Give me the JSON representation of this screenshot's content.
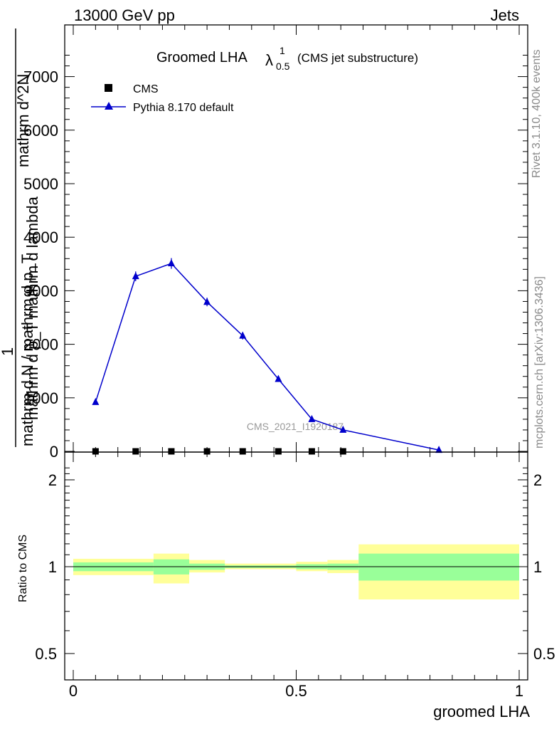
{
  "header": {
    "energy": "13000 GeV pp",
    "category": "Jets"
  },
  "plot_title": {
    "main": "Groomed LHA",
    "lambda": "λ",
    "sup": "1",
    "sub": "0.5",
    "suffix": "(CMS jet substructure)"
  },
  "side_labels": {
    "rivet": "Rivet 3.1.10,  400k events",
    "mcplots": "mcplots.cern.ch [arXiv:1306.3436]"
  },
  "watermark": "CMS_2021_I1920187",
  "ylabel_upper": {
    "one": "1",
    "denominator": "mathrm d N / mathrm d p_T",
    "numerator": "mathrm d^2N",
    "dlambda": "mathrm d p_T mathrm d lambda"
  },
  "colors": {
    "mc": "#0000cc",
    "band_inner": "#99ff99",
    "band_outer": "#ffff99",
    "data": "#000000"
  },
  "chart_data": [
    {
      "type": "line",
      "title": "Groomed LHA λ^1_0.5 (CMS jet substructure)",
      "xlabel": "groomed LHA",
      "ylabel": "1/(mathrm d N / mathrm d p_T) mathrm d^2N / (mathrm d p_T mathrm d lambda)",
      "xlim": [
        -0.02,
        1.02
      ],
      "ylim": [
        0,
        8000
      ],
      "ytick_labels": [
        "0",
        "1000",
        "2000",
        "3000",
        "4000",
        "5000",
        "6000",
        "7000"
      ],
      "legend": {
        "position": "top-left",
        "entries": [
          "CMS",
          "Pythia 8.170 default"
        ]
      },
      "series": [
        {
          "name": "CMS",
          "marker": "square",
          "x": [
            0.05,
            0.14,
            0.22,
            0.3,
            0.38,
            0.46,
            0.535,
            0.605
          ],
          "y": [
            0,
            0,
            0,
            0,
            0,
            0,
            0,
            0
          ]
        },
        {
          "name": "Pythia 8.170 default",
          "marker": "triangle",
          "x": [
            0.05,
            0.14,
            0.22,
            0.3,
            0.38,
            0.46,
            0.535,
            0.605,
            0.82
          ],
          "y": [
            920,
            3270,
            3510,
            2790,
            2160,
            1350,
            600,
            400,
            25
          ],
          "yerr": [
            30,
            90,
            100,
            80,
            70,
            50,
            25,
            20,
            5
          ]
        }
      ]
    },
    {
      "type": "area",
      "xlabel": "groomed LHA",
      "ylabel": "Ratio to CMS",
      "xlim": [
        -0.02,
        1.02
      ],
      "ylim": [
        0.4,
        2.3
      ],
      "ytick_labels": [
        "0.5",
        "1",
        "2"
      ],
      "xtick_labels": [
        "0",
        "0.5",
        "1"
      ],
      "reference_line": 1,
      "bins": [
        {
          "lo": 0.0,
          "hi": 0.18,
          "inner": [
            0.965,
            1.035
          ],
          "outer": [
            0.935,
            1.065
          ]
        },
        {
          "lo": 0.18,
          "hi": 0.26,
          "inner": [
            0.94,
            1.06
          ],
          "outer": [
            0.875,
            1.11
          ]
        },
        {
          "lo": 0.26,
          "hi": 0.34,
          "inner": [
            0.975,
            1.025
          ],
          "outer": [
            0.955,
            1.055
          ]
        },
        {
          "lo": 0.34,
          "hi": 0.5,
          "inner": [
            0.99,
            1.01
          ],
          "outer": [
            0.98,
            1.025
          ]
        },
        {
          "lo": 0.5,
          "hi": 0.57,
          "inner": [
            0.98,
            1.02
          ],
          "outer": [
            0.965,
            1.04
          ]
        },
        {
          "lo": 0.57,
          "hi": 0.64,
          "inner": [
            0.975,
            1.025
          ],
          "outer": [
            0.95,
            1.055
          ]
        },
        {
          "lo": 0.64,
          "hi": 1.0,
          "inner": [
            0.895,
            1.11
          ],
          "outer": [
            0.77,
            1.195
          ]
        }
      ]
    }
  ]
}
